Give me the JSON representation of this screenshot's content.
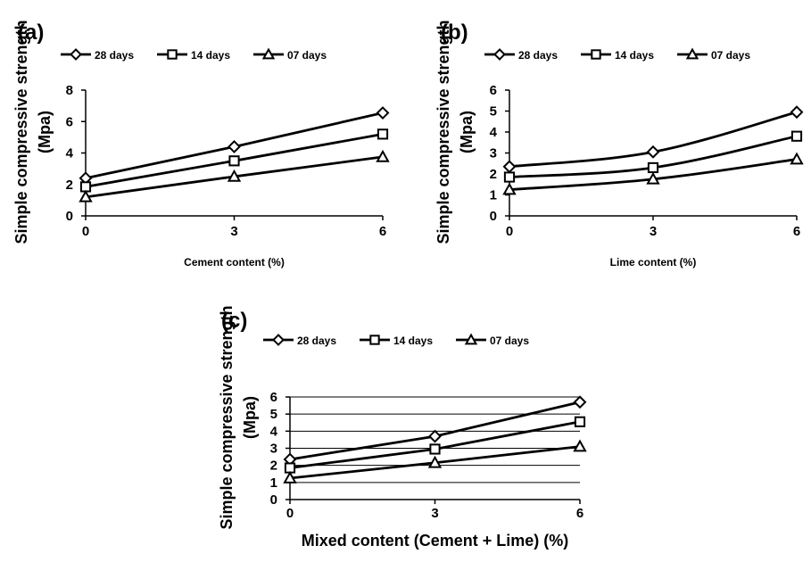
{
  "chart_data": [
    {
      "panel_label": "(a)",
      "type": "line",
      "x": [
        0,
        3,
        6
      ],
      "series": [
        {
          "name": "28 days",
          "marker": "diamond",
          "values": [
            2.4,
            4.4,
            6.55
          ]
        },
        {
          "name": "14 days",
          "marker": "square",
          "values": [
            1.85,
            3.5,
            5.2
          ]
        },
        {
          "name": "07 days",
          "marker": "triangle",
          "values": [
            1.2,
            2.5,
            3.75
          ]
        }
      ],
      "xlabel": "Cement content  (%)",
      "ylabel_line1": "Simple compressive strength",
      "ylabel_line2": "(Mpa)",
      "ylim": [
        0,
        8
      ],
      "yticks": [
        "0",
        "2",
        "4",
        "6",
        "8"
      ],
      "xticks": [
        "0",
        "3",
        "6"
      ],
      "grid": false,
      "legend_position": "top"
    },
    {
      "panel_label": "(b)",
      "type": "line",
      "x": [
        0,
        3,
        6
      ],
      "series": [
        {
          "name": "28 days",
          "marker": "diamond",
          "values": [
            2.35,
            3.05,
            4.95
          ]
        },
        {
          "name": "14 days",
          "marker": "square",
          "values": [
            1.85,
            2.3,
            3.8
          ]
        },
        {
          "name": "07 days",
          "marker": "triangle",
          "values": [
            1.25,
            1.75,
            2.7
          ]
        }
      ],
      "xlabel": "Lime content (%)",
      "ylabel_line1": "Simple compressive strength",
      "ylabel_line2": "(Mpa)",
      "ylim": [
        0,
        6
      ],
      "yticks": [
        "0",
        "1",
        "2",
        "3",
        "4",
        "5",
        "6"
      ],
      "xticks": [
        "0",
        "3",
        "6"
      ],
      "grid": false,
      "legend_position": "top"
    },
    {
      "panel_label": "(c)",
      "type": "line",
      "x": [
        0,
        3,
        6
      ],
      "series": [
        {
          "name": "28 days",
          "marker": "diamond",
          "values": [
            2.35,
            3.7,
            5.7
          ]
        },
        {
          "name": "14 days",
          "marker": "square",
          "values": [
            1.85,
            2.95,
            4.55
          ]
        },
        {
          "name": "07 days",
          "marker": "triangle",
          "values": [
            1.25,
            2.15,
            3.1
          ]
        }
      ],
      "xlabel": "Mixed content (Cement + Lime)  (%)",
      "ylabel_line1": "Simple compressive strength",
      "ylabel_line2": "(Mpa)",
      "ylim": [
        0,
        6
      ],
      "yticks": [
        "0",
        "1",
        "2",
        "3",
        "4",
        "5",
        "6"
      ],
      "xticks": [
        "0",
        "3",
        "6"
      ],
      "grid": true,
      "legend_position": "top"
    }
  ]
}
